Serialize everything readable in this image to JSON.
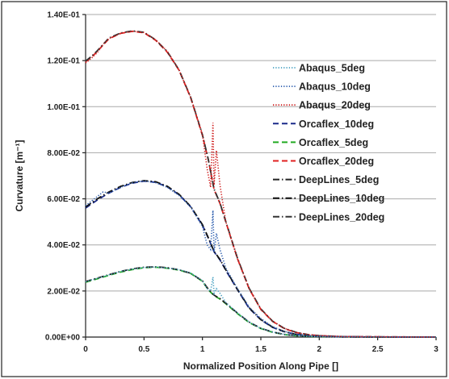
{
  "chart_data": {
    "type": "line",
    "title": "",
    "xlabel": "Normalized Position Along Pipe []",
    "ylabel": "Curvature [m⁻¹]",
    "xlim": [
      0,
      3
    ],
    "ylim": [
      0,
      0.14
    ],
    "x_ticks": [
      "0",
      "0.5",
      "1",
      "1.5",
      "2",
      "2.5",
      "3"
    ],
    "y_ticks": [
      "0.00E+00",
      "2.00E-02",
      "4.00E-02",
      "6.00E-02",
      "8.00E-02",
      "1.00E-01",
      "1.20E-01",
      "1.40E-01"
    ],
    "grid": "horizontal",
    "legend_position": "right",
    "series": [
      {
        "name": "Abaqus_5deg",
        "color": "#4ba3c3",
        "style": "dotted",
        "x": [
          0,
          0.1,
          0.2,
          0.3,
          0.4,
          0.5,
          0.6,
          0.7,
          0.8,
          0.9,
          1.0,
          1.04,
          1.07,
          1.09,
          1.1,
          1.12,
          1.15,
          1.2,
          1.3,
          1.4,
          1.5,
          1.6,
          1.7,
          1.8,
          1.9,
          2.0,
          2.2,
          2.5,
          3.0
        ],
        "y": [
          0.024,
          0.0255,
          0.027,
          0.0285,
          0.0295,
          0.0302,
          0.0304,
          0.03,
          0.0293,
          0.0278,
          0.0245,
          0.021,
          0.02,
          0.026,
          0.019,
          0.021,
          0.019,
          0.015,
          0.0105,
          0.0065,
          0.0038,
          0.0022,
          0.0012,
          0.0006,
          0.0003,
          0.0002,
          0.0001,
          0.0,
          0.0
        ]
      },
      {
        "name": "Abaqus_10deg",
        "color": "#3060b0",
        "style": "dotted",
        "x": [
          0,
          0.05,
          0.1,
          0.15,
          0.2,
          0.3,
          0.4,
          0.5,
          0.6,
          0.7,
          0.8,
          0.9,
          1.0,
          1.04,
          1.07,
          1.09,
          1.1,
          1.12,
          1.15,
          1.2,
          1.3,
          1.4,
          1.5,
          1.6,
          1.7,
          1.8,
          1.9,
          2.0,
          2.2,
          2.5,
          3.0
        ],
        "y": [
          0.057,
          0.059,
          0.061,
          0.063,
          0.0625,
          0.065,
          0.067,
          0.0678,
          0.067,
          0.065,
          0.0615,
          0.0565,
          0.048,
          0.04,
          0.038,
          0.055,
          0.037,
          0.045,
          0.038,
          0.03,
          0.021,
          0.013,
          0.008,
          0.0045,
          0.0025,
          0.0013,
          0.0007,
          0.0004,
          0.0002,
          0.0001,
          0.0
        ]
      },
      {
        "name": "Abaqus_20deg",
        "color": "#d02020",
        "style": "dotted",
        "x": [
          0,
          0.05,
          0.1,
          0.15,
          0.2,
          0.3,
          0.4,
          0.5,
          0.6,
          0.7,
          0.8,
          0.9,
          1.0,
          1.04,
          1.07,
          1.09,
          1.1,
          1.12,
          1.15,
          1.2,
          1.3,
          1.4,
          1.5,
          1.6,
          1.7,
          1.8,
          1.9,
          2.0,
          2.2,
          2.5,
          3.0
        ],
        "y": [
          0.119,
          0.121,
          0.1235,
          0.127,
          0.1295,
          0.1318,
          0.1328,
          0.1322,
          0.129,
          0.124,
          0.116,
          0.104,
          0.088,
          0.073,
          0.065,
          0.093,
          0.066,
          0.081,
          0.066,
          0.05,
          0.034,
          0.021,
          0.012,
          0.007,
          0.0038,
          0.002,
          0.0011,
          0.0006,
          0.0002,
          0.0001,
          0.0
        ]
      },
      {
        "name": "Orcaflex_10deg",
        "color": "#1a2a8a",
        "style": "dashed",
        "x": [
          0,
          0.1,
          0.2,
          0.3,
          0.4,
          0.5,
          0.6,
          0.7,
          0.8,
          0.9,
          1.0,
          1.05,
          1.1,
          1.15,
          1.2,
          1.3,
          1.4,
          1.5,
          1.6,
          1.7,
          1.8,
          1.9,
          2.0,
          2.2,
          2.5,
          3.0
        ],
        "y": [
          0.056,
          0.0595,
          0.0625,
          0.065,
          0.0668,
          0.0677,
          0.0672,
          0.0652,
          0.0618,
          0.0565,
          0.0485,
          0.043,
          0.037,
          0.0335,
          0.029,
          0.0205,
          0.0125,
          0.0075,
          0.0042,
          0.0023,
          0.0012,
          0.0006,
          0.0003,
          0.0001,
          0.0,
          0.0
        ]
      },
      {
        "name": "Orcaflex_5deg",
        "color": "#22aa22",
        "style": "dashed",
        "x": [
          0,
          0.1,
          0.2,
          0.3,
          0.4,
          0.5,
          0.6,
          0.7,
          0.8,
          0.9,
          1.0,
          1.05,
          1.1,
          1.15,
          1.2,
          1.3,
          1.4,
          1.5,
          1.6,
          1.7,
          1.8,
          1.9,
          2.0,
          2.2,
          2.5,
          3.0
        ],
        "y": [
          0.0238,
          0.0253,
          0.0268,
          0.0282,
          0.0293,
          0.0301,
          0.0303,
          0.0299,
          0.0291,
          0.0276,
          0.0242,
          0.0205,
          0.018,
          0.0165,
          0.0145,
          0.0102,
          0.0063,
          0.0037,
          0.0021,
          0.0011,
          0.0006,
          0.0003,
          0.0002,
          0.0001,
          0.0,
          0.0
        ]
      },
      {
        "name": "Orcaflex_20deg",
        "color": "#e02020",
        "style": "dashed",
        "x": [
          0,
          0.05,
          0.1,
          0.2,
          0.3,
          0.4,
          0.5,
          0.6,
          0.7,
          0.8,
          0.9,
          1.0,
          1.05,
          1.1,
          1.15,
          1.2,
          1.3,
          1.4,
          1.5,
          1.6,
          1.7,
          1.8,
          1.9,
          2.0,
          2.2,
          2.5,
          3.0
        ],
        "y": [
          0.1195,
          0.1215,
          0.124,
          0.1295,
          0.1318,
          0.1327,
          0.1321,
          0.1288,
          0.1236,
          0.1158,
          0.1038,
          0.0875,
          0.077,
          0.064,
          0.058,
          0.05,
          0.034,
          0.021,
          0.012,
          0.0068,
          0.0037,
          0.002,
          0.0011,
          0.0006,
          0.0002,
          0.0001,
          0.0
        ]
      },
      {
        "name": "DeepLines_5deg",
        "color": "#222222",
        "style": "dashdot",
        "x": [
          0,
          0.1,
          0.2,
          0.3,
          0.4,
          0.5,
          0.6,
          0.7,
          0.8,
          0.9,
          1.0,
          1.05,
          1.1,
          1.15,
          1.2,
          1.3,
          1.4,
          1.5,
          1.6,
          1.7,
          1.8,
          1.9,
          2.0,
          2.2,
          2.5,
          3.0
        ],
        "y": [
          0.0241,
          0.0256,
          0.0271,
          0.0285,
          0.0296,
          0.0303,
          0.0305,
          0.0301,
          0.0292,
          0.0277,
          0.0244,
          0.0208,
          0.0182,
          0.0167,
          0.0147,
          0.0104,
          0.0065,
          0.0038,
          0.0022,
          0.0012,
          0.0006,
          0.0003,
          0.0002,
          0.0001,
          0.0,
          0.0
        ]
      },
      {
        "name": "DeepLines_10deg",
        "color": "#111111",
        "style": "dashdot",
        "x": [
          0,
          0.1,
          0.2,
          0.3,
          0.4,
          0.5,
          0.6,
          0.7,
          0.8,
          0.9,
          1.0,
          1.05,
          1.1,
          1.15,
          1.2,
          1.3,
          1.4,
          1.5,
          1.6,
          1.7,
          1.8,
          1.9,
          2.0,
          2.2,
          2.5,
          3.0
        ],
        "y": [
          0.0565,
          0.06,
          0.063,
          0.0654,
          0.0671,
          0.0679,
          0.0674,
          0.0654,
          0.062,
          0.0567,
          0.0488,
          0.0432,
          0.0372,
          0.0337,
          0.0292,
          0.0207,
          0.0127,
          0.0076,
          0.0043,
          0.0024,
          0.0012,
          0.0006,
          0.0003,
          0.0001,
          0.0,
          0.0
        ]
      },
      {
        "name": "DeepLines_20deg",
        "color": "#333333",
        "style": "dashdot",
        "x": [
          0,
          0.05,
          0.1,
          0.2,
          0.3,
          0.4,
          0.5,
          0.6,
          0.7,
          0.8,
          0.9,
          1.0,
          1.05,
          1.1,
          1.15,
          1.2,
          1.3,
          1.4,
          1.5,
          1.6,
          1.7,
          1.8,
          1.9,
          2.0,
          2.2,
          2.5,
          3.0
        ],
        "y": [
          0.1198,
          0.1218,
          0.1243,
          0.1298,
          0.132,
          0.1329,
          0.1323,
          0.129,
          0.1238,
          0.116,
          0.104,
          0.0878,
          0.0772,
          0.0642,
          0.0582,
          0.0502,
          0.0342,
          0.0212,
          0.0122,
          0.0069,
          0.0038,
          0.0021,
          0.0011,
          0.0006,
          0.0002,
          0.0001,
          0.0
        ]
      }
    ]
  }
}
